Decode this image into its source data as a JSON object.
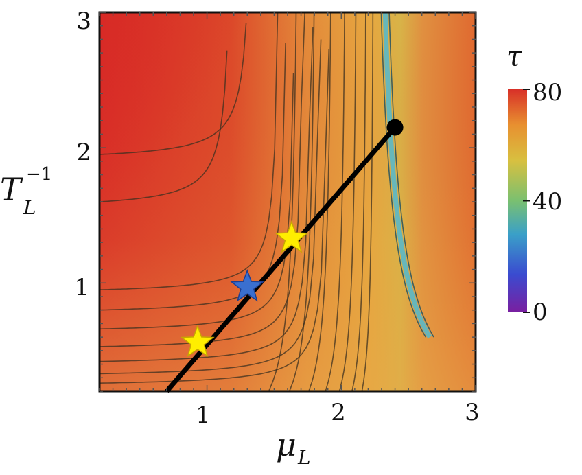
{
  "chart_data": {
    "type": "heatmap",
    "subtype": "contour",
    "title": "",
    "xlabel": {
      "base": "μ",
      "sub": "L"
    },
    "ylabel": {
      "base": "T",
      "sub": "L",
      "sup": "−1"
    },
    "xlim": [
      0.2,
      3
    ],
    "ylim": [
      0.2,
      3
    ],
    "xticks": [
      "1",
      "2",
      "3"
    ],
    "xtick_values": [
      1,
      2,
      3
    ],
    "yticks": [
      "1",
      "2",
      "3"
    ],
    "ytick_values": [
      1,
      2,
      3
    ],
    "colorbar": {
      "title": "τ",
      "range": [
        0,
        80
      ],
      "ticks": [
        "0",
        "40",
        "80"
      ],
      "tick_values": [
        0,
        40,
        80
      ],
      "colormap": [
        "#7a1fa0",
        "#3a4bd0",
        "#3aa0c8",
        "#7ac070",
        "#d8c040",
        "#e89030",
        "#d83028"
      ]
    },
    "trajectory": {
      "color": "#000000",
      "x": [
        0.7,
        2.4
      ],
      "y": [
        0.2,
        2.15
      ]
    },
    "markers": [
      {
        "kind": "endpoint-dot",
        "x": 2.4,
        "y": 2.15,
        "color": "#000000"
      },
      {
        "kind": "star",
        "x": 0.93,
        "y": 0.56,
        "color": "#ffee00"
      },
      {
        "kind": "star",
        "x": 1.3,
        "y": 0.97,
        "color": "#3a6fd0"
      },
      {
        "kind": "star",
        "x": 1.63,
        "y": 1.33,
        "color": "#ffee00"
      }
    ],
    "grid": false,
    "legend": "none"
  }
}
